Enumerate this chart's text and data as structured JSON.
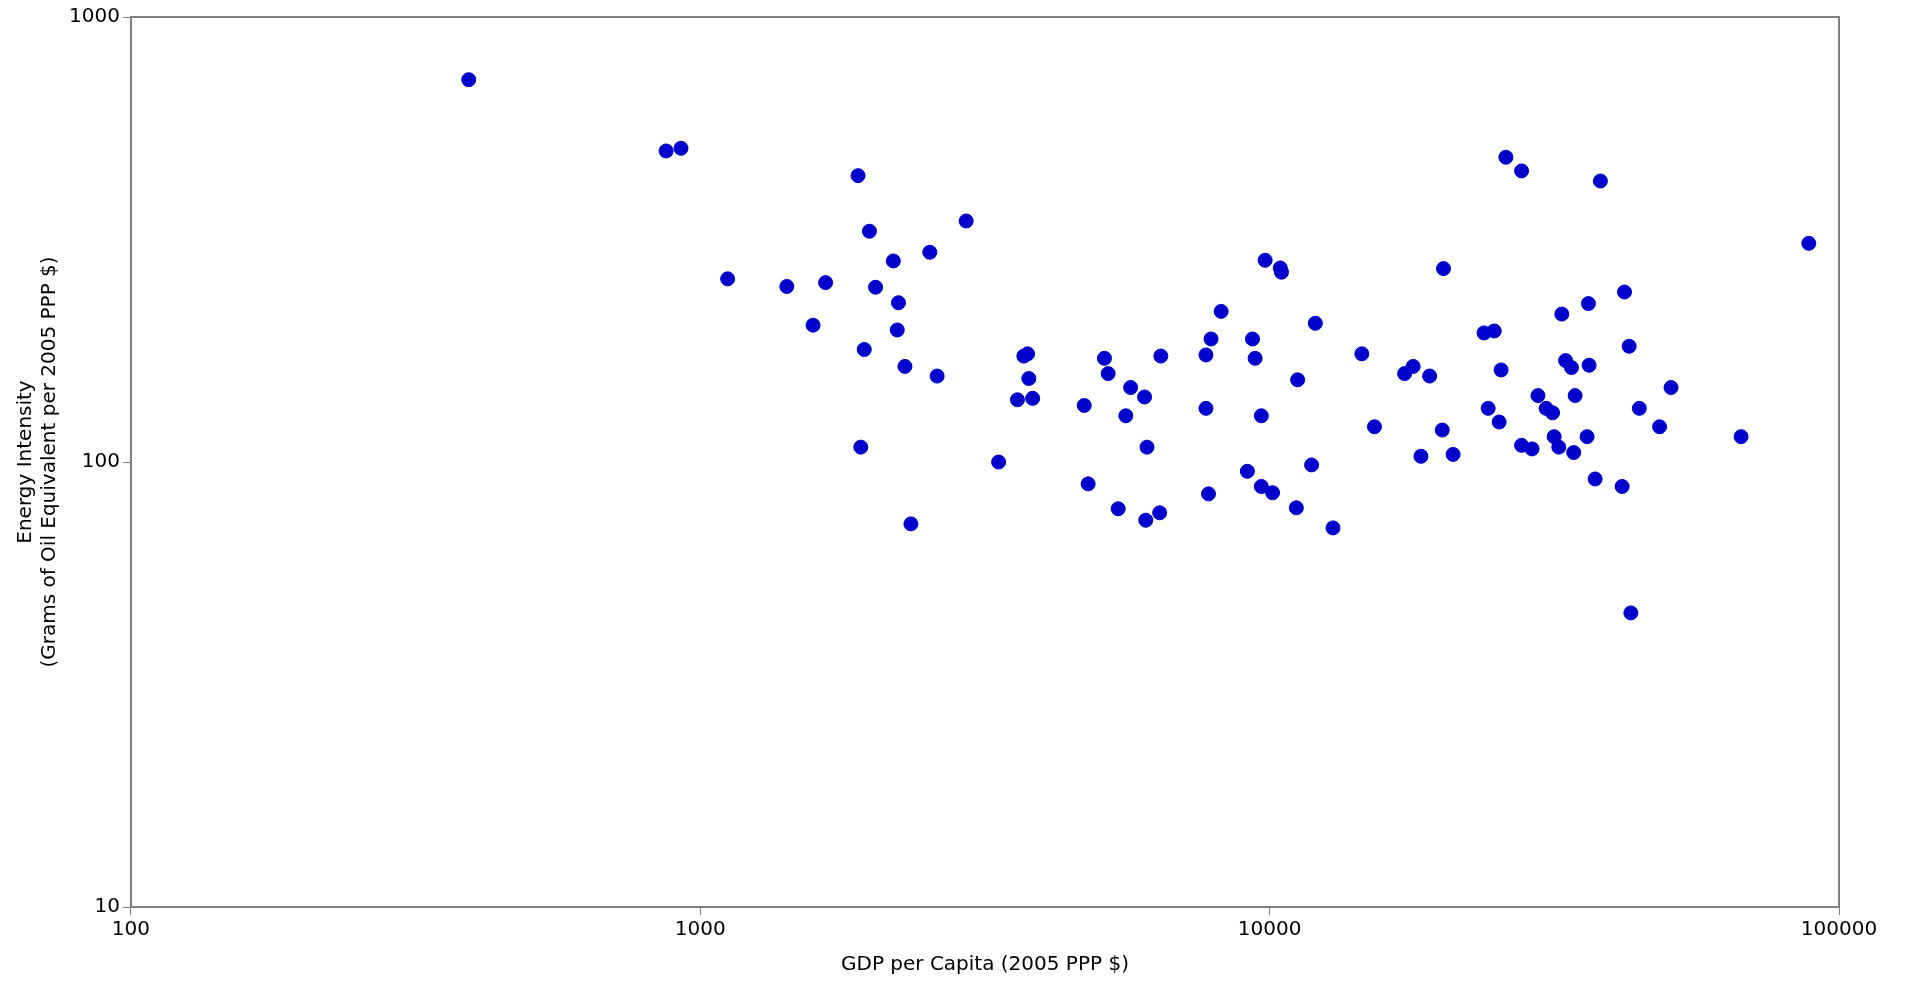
{
  "chart_data": {
    "type": "scatter",
    "xlabel": "GDP per Capita (2005 PPP $)",
    "ylabel": "Energy Intensity\n(Grams of Oil Equivalent per 2005 PPP $)",
    "log": "xy",
    "xlim": [
      100,
      100000
    ],
    "xticks": [
      100,
      1000,
      10000,
      100000
    ],
    "ylim": [
      10,
      1000
    ],
    "yticks": [
      10,
      100,
      1000
    ],
    "grid": false,
    "legend": false,
    "marker": "circle",
    "series": [
      {
        "color": "#0000cc",
        "x": [
          392,
          871,
          925,
          1893,
          1117,
          1419,
          1660,
          1578,
          1982,
          2183,
          2032,
          2229,
          2530,
          2931,
          1941,
          2218,
          2288,
          2606,
          1914,
          2344,
          3342,
          3606,
          3701,
          3758,
          3776,
          3835,
          4725,
          4800,
          5127,
          5205,
          5420,
          5590,
          5700,
          6030,
          6090,
          6060,
          6410,
          6440,
          7730,
          7890,
          8220,
          7730,
          7810,
          9330,
          9430,
          9670,
          9140,
          9670,
          9820,
          10120,
          10440,
          10490,
          11200,
          11140,
          11850,
          12030,
          12920,
          14520,
          15280,
          17260,
          17870,
          18440,
          19100,
          20100,
          20200,
          21000,
          23800,
          24800,
          24200,
          25300,
          25500,
          26000,
          27700,
          27700,
          28900,
          29600,
          30600,
          31400,
          31600,
          32200,
          32600,
          33100,
          33900,
          34200,
          34400,
          36100,
          36300,
          36400,
          37300,
          38100,
          41600,
          42000,
          42800,
          43100,
          44600,
          48400,
          50700,
          67300,
          88500
        ],
        "values": [
          723,
          500,
          507,
          440,
          258,
          248,
          253,
          203,
          330,
          283,
          247,
          228,
          296,
          348,
          179,
          198,
          164,
          156,
          108,
          72.6,
          100,
          138,
          173,
          175,
          154,
          139,
          134,
          89.3,
          171,
          158,
          78.5,
          127,
          147,
          140,
          108,
          74,
          76.9,
          173,
          174,
          189,
          218,
          132,
          84.8,
          189,
          171,
          127,
          95.3,
          88.1,
          284,
          85.3,
          273,
          267,
          153,
          78.9,
          98.5,
          205,
          71.1,
          175,
          120,
          158,
          164,
          103,
          156,
          118,
          272,
          104,
          195,
          197,
          132,
          123,
          161,
          484,
          451,
          109,
          107,
          141,
          132,
          129,
          114,
          108,
          215,
          169,
          163,
          105,
          141,
          114,
          227,
          165,
          91.6,
          428,
          88.1,
          241,
          182,
          45.8,
          132,
          120,
          147,
          114,
          310
        ]
      }
    ]
  }
}
